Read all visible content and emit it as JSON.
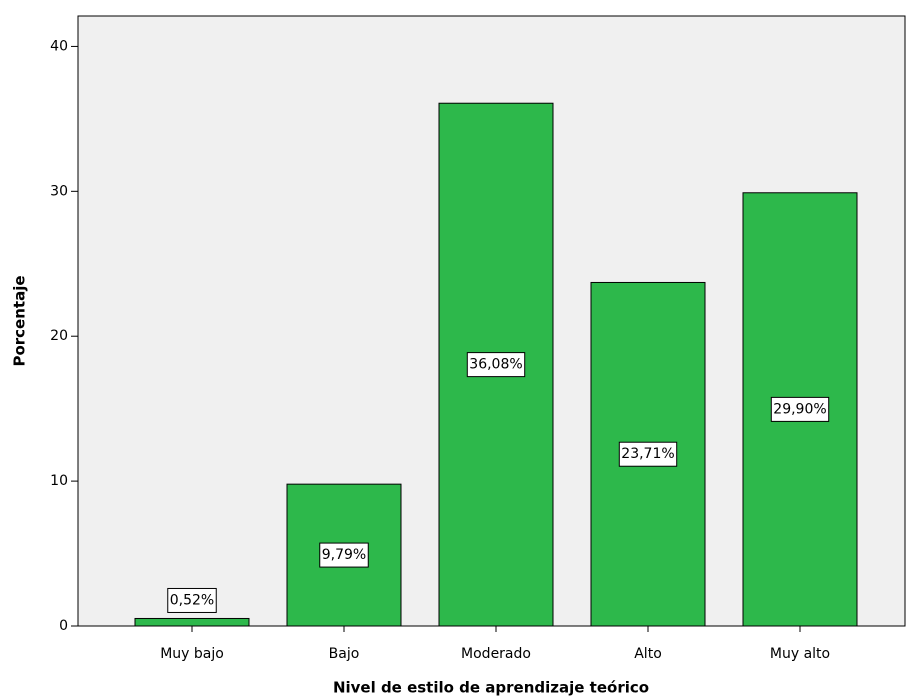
{
  "chart_data": {
    "type": "bar",
    "x_label": "Nivel de estilo de aprendizaje teórico",
    "y_label": "Porcentaje",
    "categories": [
      "Muy bajo",
      "Bajo",
      "Moderado",
      "Alto",
      "Muy alto"
    ],
    "values": [
      0.52,
      9.79,
      36.08,
      23.71,
      29.9
    ],
    "value_labels": [
      "0,52%",
      "9,79%",
      "36,08%",
      "23,71%",
      "29,90%"
    ],
    "color": "#2db84b",
    "ylim": [
      0,
      42.1
    ],
    "yticks": [
      0,
      10,
      20,
      30,
      40
    ],
    "grid": false
  }
}
